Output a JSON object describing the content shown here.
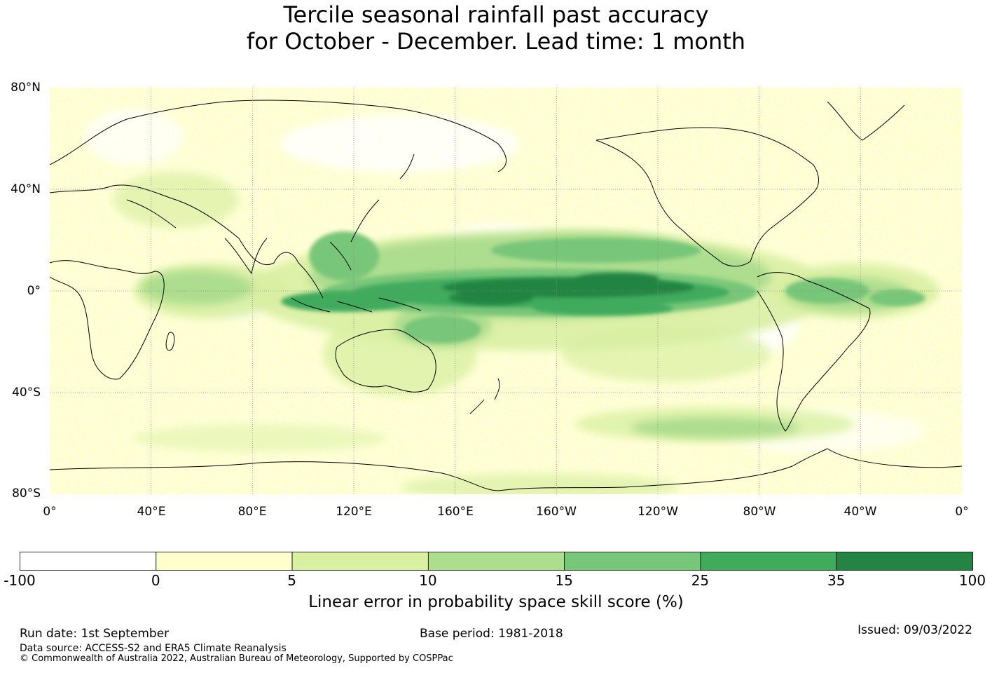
{
  "title": {
    "line1": "Tercile seasonal rainfall past accuracy",
    "line2": "for October - December. Lead time: 1 month"
  },
  "map": {
    "lat_labels": [
      "80°N",
      "40°N",
      "0°",
      "40°S",
      "80°S"
    ],
    "lon_labels": [
      "0°",
      "40°E",
      "80°E",
      "120°E",
      "160°E",
      "160°W",
      "120°W",
      "80°W",
      "40°W",
      "0°"
    ],
    "colors": {
      "land_outline": "#000000",
      "grid": "#888888"
    }
  },
  "colorbar": {
    "title": "Linear error in probability space skill score (%)",
    "boundaries": [
      "-100",
      "0",
      "5",
      "10",
      "15",
      "25",
      "35",
      "100"
    ],
    "colors": [
      "#ffffff",
      "#ffffcc",
      "#d9f0a3",
      "#addd8e",
      "#78c679",
      "#41ab5d",
      "#238443"
    ]
  },
  "footer": {
    "run_date": "Run date: 1st September",
    "base_period": "Base period: 1981-2018",
    "issued": "Issued: 09/03/2022",
    "data_source": "Data source: ACCESS-S2 and ERA5 Climate Reanalysis",
    "copyright": "© Commonwealth of Australia 2022, Australian Bureau of Meteorology, Supported by COSPPac"
  }
}
